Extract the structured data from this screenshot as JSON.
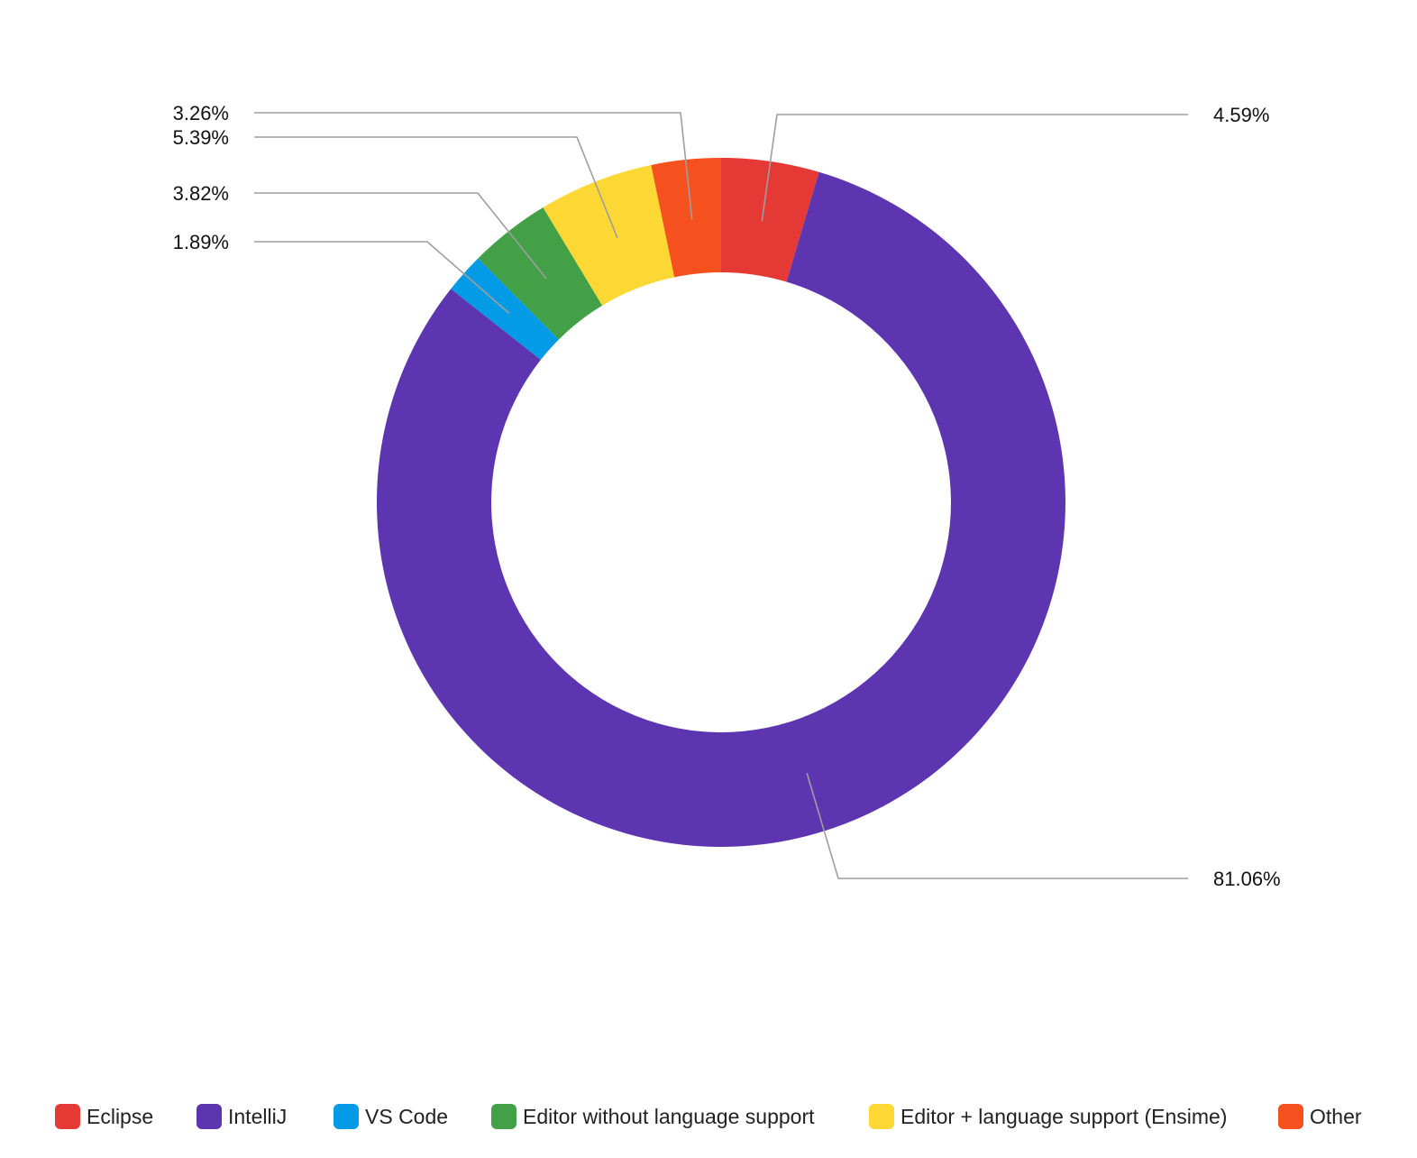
{
  "chart_data": {
    "type": "pie",
    "donut": true,
    "title": "",
    "legend_position": "bottom",
    "slices": [
      {
        "name": "Eclipse",
        "value": 4.59,
        "label": "4.59%",
        "color": "#e53935"
      },
      {
        "name": "IntelliJ",
        "value": 81.06,
        "label": "81.06%",
        "color": "#5e35b1"
      },
      {
        "name": "VS Code",
        "value": 1.89,
        "label": "1.89%",
        "color": "#039be5"
      },
      {
        "name": "Editor without language support",
        "value": 3.82,
        "label": "3.82%",
        "color": "#43a047"
      },
      {
        "name": "Editor + language support (Ensime)",
        "value": 5.39,
        "label": "5.39%",
        "color": "#fdd835"
      },
      {
        "name": "Other",
        "value": 3.26,
        "label": "3.26%",
        "color": "#f4511e"
      }
    ]
  }
}
